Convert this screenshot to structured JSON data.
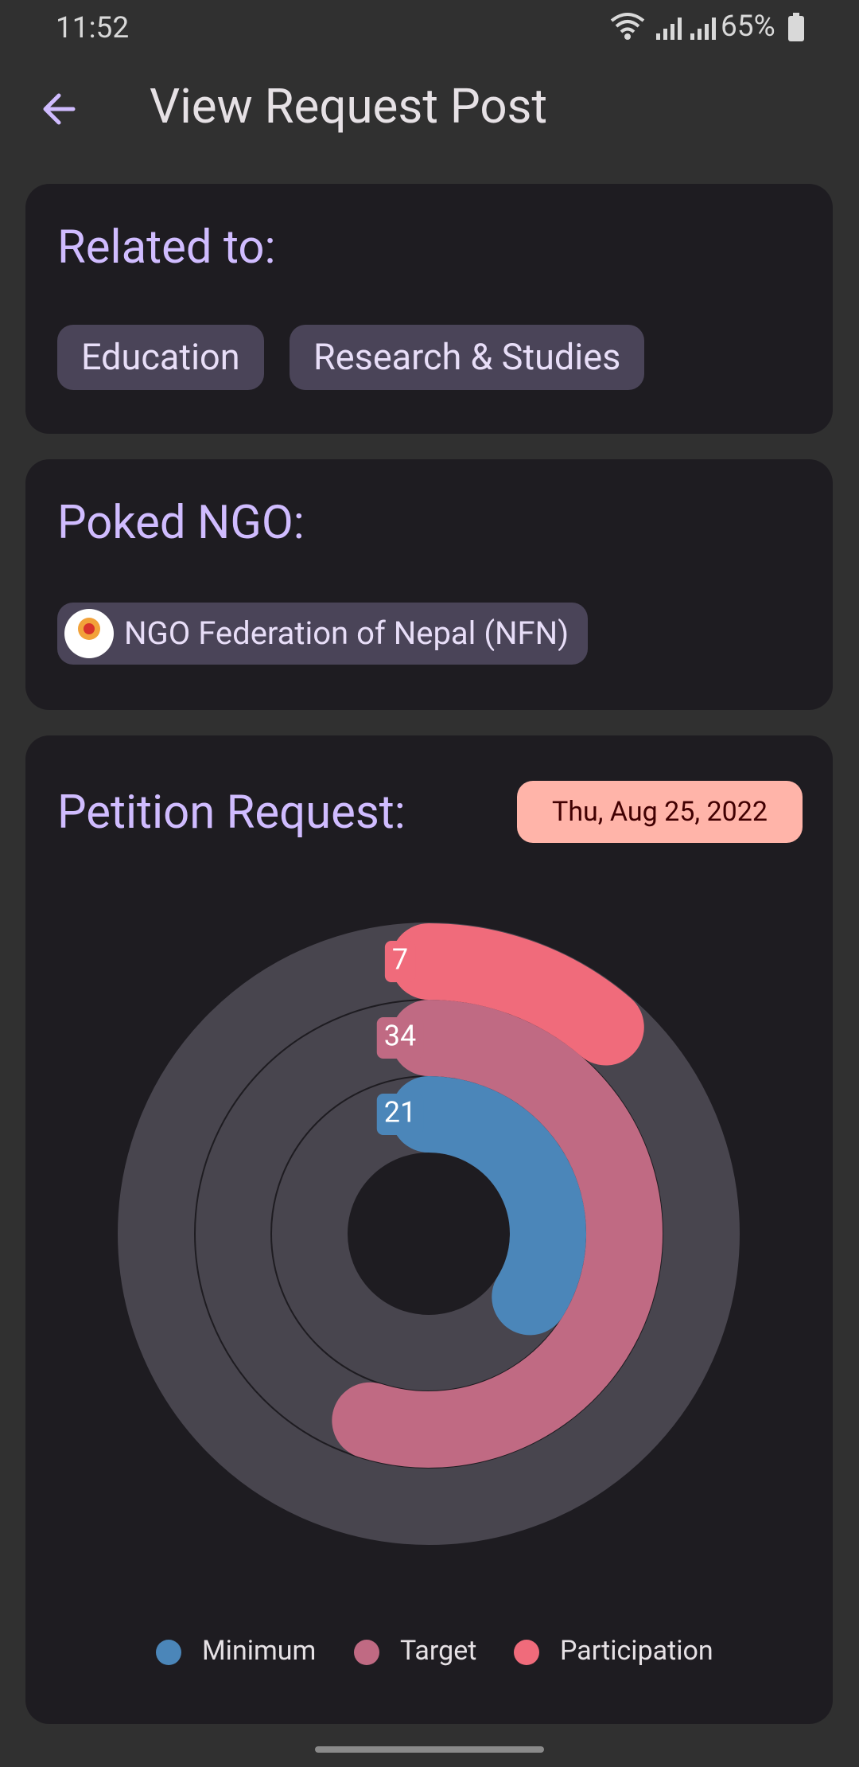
{
  "status_bar": {
    "time": "11:52",
    "battery": "65%"
  },
  "header": {
    "title": "View Request Post"
  },
  "related": {
    "title": "Related to:",
    "tags": [
      "Education",
      "Research & Studies"
    ]
  },
  "poked": {
    "title": "Poked NGO:",
    "ngo": "NGO Federation of Nepal (NFN)"
  },
  "petition": {
    "title": "Petition Request:",
    "date": "Thu, Aug 25, 2022"
  },
  "chart_data": {
    "type": "radialBar",
    "series": [
      {
        "name": "Minimum",
        "color": "#4b86b9",
        "values": [
          21
        ]
      },
      {
        "name": "Target",
        "color": "#c06a83",
        "values": [
          34
        ]
      },
      {
        "name": "Participation",
        "color": "#f06b7b",
        "values": [
          7
        ]
      }
    ]
  }
}
